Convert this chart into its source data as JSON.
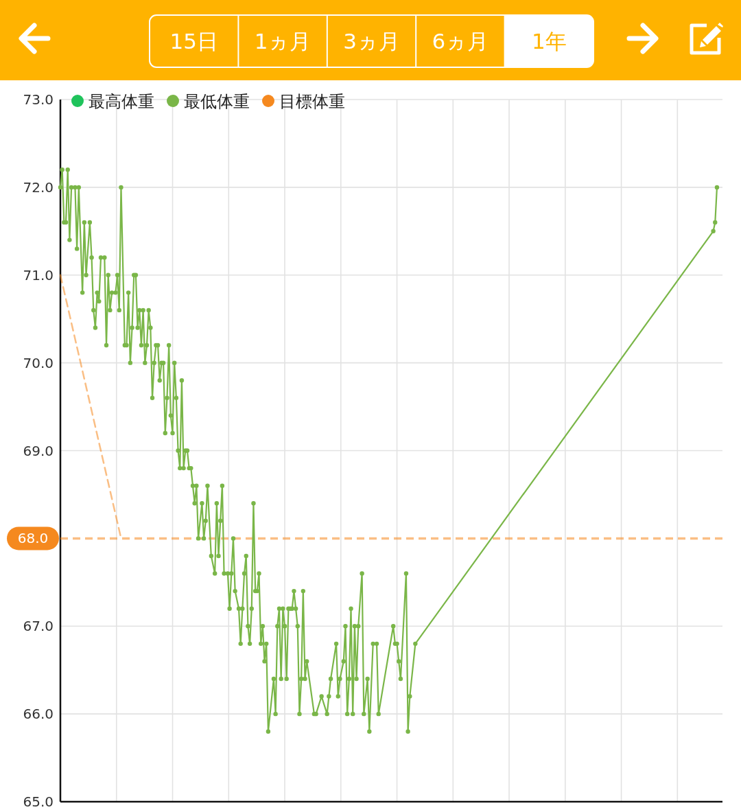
{
  "chart_data": {
    "type": "line",
    "annotations": [
      "15日",
      "1ヵ月",
      "3ヵ月",
      "6ヵ月",
      "1年"
    ],
    "categories": [
      null,
      null,
      null,
      null,
      null,
      null,
      null,
      null,
      null,
      null,
      null,
      null,
      null,
      null,
      null,
      null,
      null,
      null,
      null,
      null,
      null,
      null,
      null,
      null,
      null,
      null,
      null,
      null,
      null,
      null,
      null,
      null,
      null,
      null,
      null,
      null,
      null,
      null,
      null,
      null,
      null,
      null,
      null,
      null,
      null,
      null,
      null,
      null,
      null,
      null,
      null,
      null,
      null,
      null,
      null,
      null,
      null,
      null,
      null,
      null,
      null,
      null,
      null,
      null,
      null,
      null,
      null,
      null,
      null,
      null,
      null,
      null,
      null,
      null,
      null,
      null,
      null,
      null,
      null,
      null,
      null,
      null,
      null,
      null,
      null,
      null,
      null,
      null,
      null,
      null,
      null,
      null,
      null,
      null,
      null,
      null,
      null,
      null,
      null,
      null,
      null,
      null,
      null,
      null,
      null,
      null,
      null,
      null,
      null,
      null,
      null,
      null,
      null,
      null,
      null,
      null,
      null,
      null,
      null,
      null,
      null,
      null,
      null,
      null,
      null,
      null,
      null,
      null,
      null,
      null,
      null,
      null,
      null,
      null,
      null,
      null,
      null,
      null,
      null,
      null,
      null,
      null,
      null,
      null,
      null,
      null,
      null,
      null,
      null,
      null,
      null,
      null,
      null,
      null,
      null,
      null,
      null,
      null,
      null,
      null,
      null,
      null,
      null,
      null,
      null,
      null,
      null,
      null,
      null,
      null,
      null,
      null,
      null,
      null,
      null,
      null,
      null,
      null,
      null,
      null,
      null,
      null,
      null,
      null,
      null,
      null,
      null,
      null,
      null,
      null,
      null,
      null,
      null,
      null,
      null,
      null,
      null,
      null,
      null,
      null,
      null,
      null,
      null,
      null,
      null,
      null,
      null,
      null,
      null,
      null,
      null,
      null,
      null,
      null,
      null,
      null,
      null,
      null,
      null,
      null,
      null,
      null,
      null,
      null,
      null,
      null,
      null,
      null,
      null,
      null,
      null,
      null,
      null,
      null,
      null,
      null,
      null,
      null,
      null,
      null,
      null,
      null,
      null,
      null,
      null,
      null,
      null,
      null,
      null,
      null,
      null,
      null,
      null,
      null,
      null,
      null,
      null,
      null,
      null,
      null,
      null,
      null,
      null,
      null,
      null,
      null,
      null,
      null,
      null,
      null,
      null,
      null,
      null,
      null,
      null,
      null,
      null,
      null,
      null,
      null,
      null,
      null,
      null,
      null,
      null,
      null,
      null,
      null,
      null,
      null,
      null,
      null,
      null,
      null,
      null,
      null,
      null,
      null,
      null,
      null,
      null,
      null,
      null,
      null,
      null,
      null,
      null,
      null,
      null,
      null,
      null,
      null,
      null,
      null,
      null,
      null,
      null,
      null,
      null,
      null,
      null,
      null,
      null,
      null,
      null,
      null,
      null,
      null,
      null,
      null,
      null,
      null,
      null,
      null,
      null,
      null,
      null,
      null,
      null,
      null,
      null,
      null,
      null,
      null,
      null,
      null,
      null,
      null,
      null,
      null,
      null,
      null,
      null,
      null,
      null,
      null,
      null,
      null,
      null,
      null,
      null
    ],
    "series": [
      {
        "name": "最高体重",
        "color": "#1fc35b",
        "values": [
          null,
          null,
          null,
          null,
          null,
          null,
          null,
          null,
          null,
          null,
          null,
          null,
          null,
          null,
          null,
          null,
          null,
          null,
          null,
          null,
          null,
          null,
          null,
          null,
          null,
          null,
          null,
          null,
          null,
          null,
          null,
          null,
          null,
          null,
          null,
          null,
          null,
          null,
          null,
          null,
          null,
          null,
          null,
          null,
          null,
          null,
          null,
          null,
          null,
          null,
          null,
          null,
          null,
          null,
          null,
          null,
          null,
          null,
          null,
          null,
          null,
          null,
          null,
          null,
          null,
          null,
          null,
          null,
          null,
          null,
          null,
          null,
          null,
          null,
          null,
          null,
          null,
          null,
          null,
          null,
          null,
          null,
          null,
          null,
          null,
          null,
          null,
          null,
          null,
          null,
          null,
          null,
          null,
          null,
          null,
          null,
          null,
          null,
          null,
          null,
          null,
          null,
          null,
          null,
          null,
          null,
          null,
          null,
          null,
          null,
          null,
          null,
          null,
          null,
          null,
          null,
          null,
          null,
          null,
          null,
          null,
          null,
          null,
          null,
          null,
          null,
          null,
          null,
          null,
          null,
          null,
          null,
          null,
          null,
          null,
          null,
          null,
          null,
          null,
          null,
          null,
          null,
          null,
          null,
          null,
          null,
          null,
          null,
          null,
          null,
          null,
          null,
          null,
          null,
          null,
          null,
          null,
          null,
          null,
          null,
          null,
          null,
          null,
          null,
          null,
          null,
          null,
          null,
          null,
          null,
          null,
          null,
          null,
          null,
          null,
          null,
          null,
          null,
          null,
          null,
          null,
          null,
          null,
          null,
          null,
          null,
          null,
          null,
          null,
          null,
          null,
          null,
          null,
          null,
          null,
          null,
          null,
          null,
          null,
          null,
          null,
          null,
          null,
          null,
          null,
          null,
          null,
          null,
          null,
          null,
          null,
          null,
          null,
          null,
          null,
          null,
          null,
          null,
          null,
          null,
          null,
          null,
          null,
          null,
          null,
          null,
          null,
          null,
          null,
          null,
          null,
          null,
          null,
          null,
          null,
          null,
          null,
          null,
          null,
          null,
          null,
          null,
          null,
          null,
          null,
          null,
          null,
          null,
          null,
          null,
          null,
          null,
          null,
          null,
          null,
          null,
          null,
          null,
          null,
          null,
          null,
          null,
          null,
          null,
          null,
          null,
          null,
          null,
          null,
          null,
          null,
          null,
          null,
          null,
          null,
          null,
          null,
          null,
          null,
          null,
          null,
          null,
          null,
          null,
          null,
          null,
          null,
          null,
          null,
          null,
          null,
          null,
          null,
          null,
          null,
          null,
          null,
          null,
          null,
          null,
          null,
          null,
          null,
          null,
          null,
          null,
          null,
          null,
          null,
          null,
          null,
          null,
          null,
          null,
          null,
          null,
          null,
          null,
          null,
          null,
          null,
          null,
          null,
          null,
          null,
          null,
          null,
          null,
          null,
          null,
          null,
          null,
          null,
          null,
          null,
          null,
          null,
          null,
          null,
          null,
          null,
          null,
          null,
          null,
          null,
          null,
          null,
          null,
          null,
          null,
          null,
          null,
          null,
          null,
          null,
          null,
          null,
          null,
          null,
          null,
          null
        ]
      },
      {
        "name": "最低体重",
        "color": "#7ab648",
        "values": [
          72.0,
          72.2,
          71.6,
          71.6,
          72.2,
          71.4,
          72.0,
          null,
          72.0,
          71.3,
          72.0,
          null,
          70.8,
          71.6,
          71.0,
          null,
          71.6,
          71.2,
          70.6,
          70.4,
          70.8,
          70.7,
          71.2,
          null,
          71.2,
          70.2,
          71.0,
          70.6,
          70.8,
          null,
          70.8,
          71.0,
          70.6,
          72.0,
          null,
          70.2,
          70.2,
          70.8,
          70.0,
          70.4,
          71.0,
          71.0,
          70.4,
          70.6,
          70.2,
          70.6,
          70.0,
          70.2,
          70.6,
          70.4,
          69.6,
          70.0,
          70.2,
          70.2,
          69.8,
          70.0,
          70.0,
          69.2,
          69.6,
          70.2,
          69.4,
          69.2,
          70.0,
          69.6,
          69.0,
          68.8,
          69.8,
          68.8,
          69.0,
          69.0,
          68.8,
          68.8,
          68.6,
          68.4,
          68.6,
          68.0,
          null,
          68.4,
          68.0,
          68.2,
          68.6,
          null,
          67.8,
          null,
          67.6,
          68.4,
          67.8,
          68.2,
          68.6,
          67.6,
          null,
          67.6,
          67.2,
          67.6,
          68.0,
          67.4,
          null,
          67.2,
          66.8,
          67.2,
          67.6,
          67.8,
          67.0,
          66.8,
          67.2,
          68.4,
          67.4,
          67.4,
          67.6,
          66.8,
          67.0,
          66.6,
          66.8,
          65.8,
          null,
          null,
          66.4,
          66.0,
          67.0,
          67.2,
          66.4,
          67.2,
          67.0,
          66.4,
          67.2,
          67.2,
          67.2,
          67.4,
          67.2,
          67.0,
          66.0,
          66.4,
          67.4,
          66.4,
          66.6,
          null,
          null,
          null,
          66.0,
          66.0,
          null,
          null,
          66.2,
          null,
          null,
          66.0,
          66.2,
          66.4,
          null,
          null,
          66.8,
          66.2,
          66.4,
          null,
          66.6,
          67.0,
          66.0,
          66.4,
          67.2,
          66.0,
          67.0,
          66.4,
          67.0,
          null,
          67.6,
          66.0,
          null,
          66.4,
          65.8,
          null,
          66.8,
          null,
          66.8,
          66.0,
          null,
          null,
          null,
          null,
          null,
          null,
          null,
          67.0,
          66.8,
          66.8,
          66.6,
          66.4,
          null,
          null,
          67.6,
          65.8,
          66.2,
          null,
          null,
          66.8,
          null,
          null,
          null,
          null,
          null,
          null,
          null,
          null,
          null,
          null,
          null,
          null,
          null,
          null,
          null,
          null,
          null,
          null,
          null,
          null,
          null,
          null,
          null,
          null,
          null,
          null,
          null,
          null,
          null,
          null,
          null,
          null,
          null,
          null,
          null,
          null,
          null,
          null,
          null,
          null,
          null,
          null,
          null,
          null,
          null,
          null,
          null,
          null,
          null,
          null,
          null,
          null,
          null,
          null,
          null,
          null,
          null,
          null,
          null,
          null,
          null,
          null,
          null,
          null,
          null,
          null,
          null,
          null,
          null,
          null,
          null,
          null,
          null,
          null,
          null,
          null,
          null,
          null,
          null,
          null,
          null,
          null,
          null,
          null,
          null,
          null,
          null,
          null,
          null,
          null,
          null,
          null,
          null,
          null,
          null,
          null,
          null,
          null,
          null,
          null,
          null,
          null,
          null,
          null,
          null,
          null,
          null,
          null,
          null,
          null,
          null,
          null,
          null,
          null,
          null,
          null,
          null,
          null,
          null,
          null,
          null,
          null,
          null,
          null,
          null,
          null,
          null,
          null,
          null,
          null,
          null,
          null,
          null,
          null,
          null,
          null,
          null,
          null,
          null,
          null,
          null,
          null,
          null,
          null,
          null,
          null,
          null,
          null,
          null,
          null,
          null,
          null,
          null,
          null,
          null,
          null,
          null,
          null,
          null,
          null,
          null,
          71.5,
          71.6,
          72.0,
          null,
          null,
          null
        ]
      },
      {
        "name": "目標体重",
        "color": "#f5891f",
        "line_style": "dashed",
        "marker": "none",
        "values": [
          71.0,
          null,
          null,
          null,
          null,
          null,
          null,
          null,
          null,
          null,
          null,
          null,
          null,
          null,
          null,
          null,
          null,
          null,
          null,
          null,
          null,
          null,
          null,
          null,
          null,
          null,
          null,
          null,
          null,
          null,
          null,
          null,
          null,
          68.0,
          null,
          null,
          null,
          null,
          null,
          null,
          null,
          null,
          null,
          null,
          null,
          null,
          null,
          null,
          null,
          null,
          null,
          null,
          null,
          null,
          null,
          null,
          null,
          null,
          null,
          null,
          null,
          null,
          null,
          null,
          null,
          null,
          null,
          null,
          null,
          null,
          null,
          null,
          null,
          null,
          null,
          null,
          null,
          null,
          null,
          null,
          null,
          null,
          null,
          null,
          null,
          null,
          null,
          null,
          null,
          null,
          null,
          null,
          null,
          null,
          null,
          null,
          null,
          null,
          null,
          null,
          null,
          null,
          null,
          null,
          null,
          null,
          null,
          null,
          null,
          null,
          null,
          null,
          null,
          null,
          null,
          null,
          null,
          null,
          null,
          null,
          null,
          null,
          null,
          null,
          null,
          null,
          null,
          null,
          null,
          null,
          null,
          null,
          null,
          null,
          null,
          null,
          null,
          null,
          null,
          null,
          null,
          null,
          null,
          null,
          null,
          null,
          null,
          null,
          null,
          null,
          null,
          null,
          null,
          null,
          null,
          null,
          null,
          null,
          null,
          null,
          null,
          null,
          null,
          null,
          null,
          null,
          null,
          null,
          null,
          null,
          null,
          null,
          null,
          null,
          null,
          null,
          null,
          null,
          null,
          null,
          null,
          null,
          null,
          null,
          null,
          null,
          null,
          null,
          null,
          null,
          null,
          null,
          null,
          null,
          null,
          null,
          null,
          null,
          null,
          null,
          null,
          null,
          null,
          null,
          null,
          null,
          null,
          null,
          null,
          null,
          null,
          null,
          null,
          null,
          null,
          null,
          null,
          null,
          null,
          null,
          null,
          null,
          null,
          null,
          null,
          null,
          null,
          null,
          null,
          null,
          null,
          null,
          null,
          null,
          null,
          null,
          null,
          null,
          null,
          null,
          null,
          null,
          null,
          null,
          null,
          null,
          null,
          null,
          null,
          null,
          null,
          null,
          null,
          null,
          null,
          null,
          null,
          null,
          null,
          null,
          null,
          null,
          null,
          null,
          null,
          null,
          null,
          null,
          null,
          null,
          null,
          null,
          null,
          null,
          null,
          null,
          null,
          null,
          null,
          null,
          null,
          null,
          null,
          null,
          null,
          null,
          null,
          null,
          null,
          null,
          null,
          null,
          null,
          null,
          null,
          null,
          null,
          null,
          null,
          null,
          null,
          null,
          null,
          null,
          null,
          null,
          null,
          null,
          null,
          null,
          null,
          null,
          null,
          null,
          null,
          null,
          null,
          null,
          null,
          null,
          null,
          null,
          null,
          null,
          null,
          null,
          null,
          null,
          null,
          null,
          null,
          null,
          null,
          null,
          null,
          null,
          null,
          null,
          null,
          null,
          null,
          null,
          null,
          null,
          null,
          null,
          null,
          null,
          null,
          null,
          null,
          null,
          null,
          null,
          null,
          null,
          null,
          null,
          null,
          null,
          null
        ]
      }
    ],
    "marker": "circle",
    "ylim": [
      65.0,
      73.0
    ],
    "yticks": [
      {
        "value": 65,
        "label": "65.0"
      },
      {
        "value": 66,
        "label": "66.0"
      },
      {
        "value": 67,
        "label": "67.0"
      },
      {
        "value": 69,
        "label": "69.0"
      },
      {
        "value": 70,
        "label": "70.0"
      },
      {
        "value": 71,
        "label": "71.0"
      },
      {
        "value": 72,
        "label": "72.0"
      },
      {
        "value": 73,
        "label": "73.0"
      }
    ],
    "ref_lines": [
      {
        "axis": "y",
        "value": 68.0,
        "label": "68.0",
        "color": "#f5891f",
        "line_style": "dashed"
      }
    ],
    "tick_labels": "y",
    "grid": true,
    "legend": "top left"
  }
}
